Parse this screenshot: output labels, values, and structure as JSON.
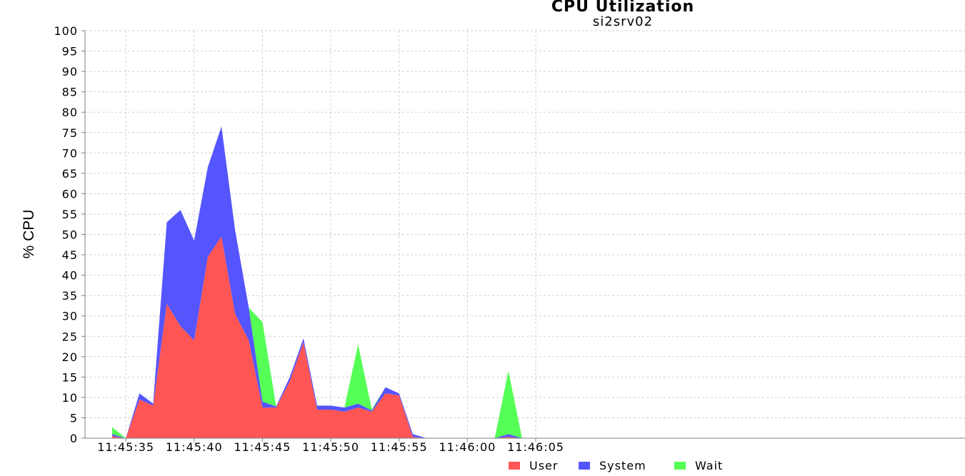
{
  "chart_data": {
    "type": "area",
    "stacked": true,
    "title": "CPU Utilization",
    "subtitle": "si2srv02",
    "xlabel": "",
    "ylabel": "% CPU",
    "ylim": [
      0,
      100
    ],
    "yticks": [
      0,
      5,
      10,
      15,
      20,
      25,
      30,
      35,
      40,
      45,
      50,
      55,
      60,
      65,
      70,
      75,
      80,
      85,
      90,
      95,
      100
    ],
    "xlim_seconds": [
      -1,
      31
    ],
    "xtick_labels": [
      "11:45:35",
      "11:45:40",
      "11:45:45",
      "11:45:50",
      "11:45:55",
      "11:46:00",
      "11:46:05"
    ],
    "xtick_seconds": [
      35,
      40,
      45,
      50,
      55,
      60,
      65
    ],
    "x_seconds": [
      34,
      35,
      36,
      37,
      38,
      39,
      40,
      41,
      42,
      43,
      44,
      45,
      46,
      47,
      48,
      49,
      50,
      51,
      52,
      53,
      54,
      55,
      56,
      57,
      58,
      59,
      60,
      61,
      62,
      63,
      64
    ],
    "grid": true,
    "legend_position": "bottom",
    "series": [
      {
        "name": "User",
        "color": "#ff5555",
        "values": [
          0.5,
          0,
          9.5,
          8,
          33,
          27.5,
          24,
          44.5,
          49.5,
          30.5,
          24,
          7.5,
          7.5,
          14,
          23.5,
          7,
          7,
          6.5,
          7.5,
          6.5,
          11,
          10.5,
          0.3,
          0,
          0,
          0,
          0,
          0,
          0,
          0.3,
          0
        ]
      },
      {
        "name": "System",
        "color": "#5555ff",
        "values": [
          0.5,
          0,
          1.5,
          0.5,
          20,
          28.5,
          24.5,
          22,
          27,
          20.5,
          8,
          1.5,
          0.3,
          1,
          1,
          1,
          1,
          1,
          1,
          0.3,
          1.5,
          0.5,
          0.7,
          0,
          0,
          0,
          0,
          0,
          0,
          0.7,
          0
        ]
      },
      {
        "name": "Wait",
        "color": "#55ff55",
        "values": [
          1.7,
          0,
          0,
          0,
          0,
          0,
          0,
          0,
          0,
          0,
          0,
          19.5,
          0,
          0,
          0,
          0,
          0,
          0,
          14.5,
          0.3,
          0,
          0,
          0,
          0,
          0,
          0,
          0,
          0,
          0,
          15.5,
          0
        ]
      }
    ]
  }
}
